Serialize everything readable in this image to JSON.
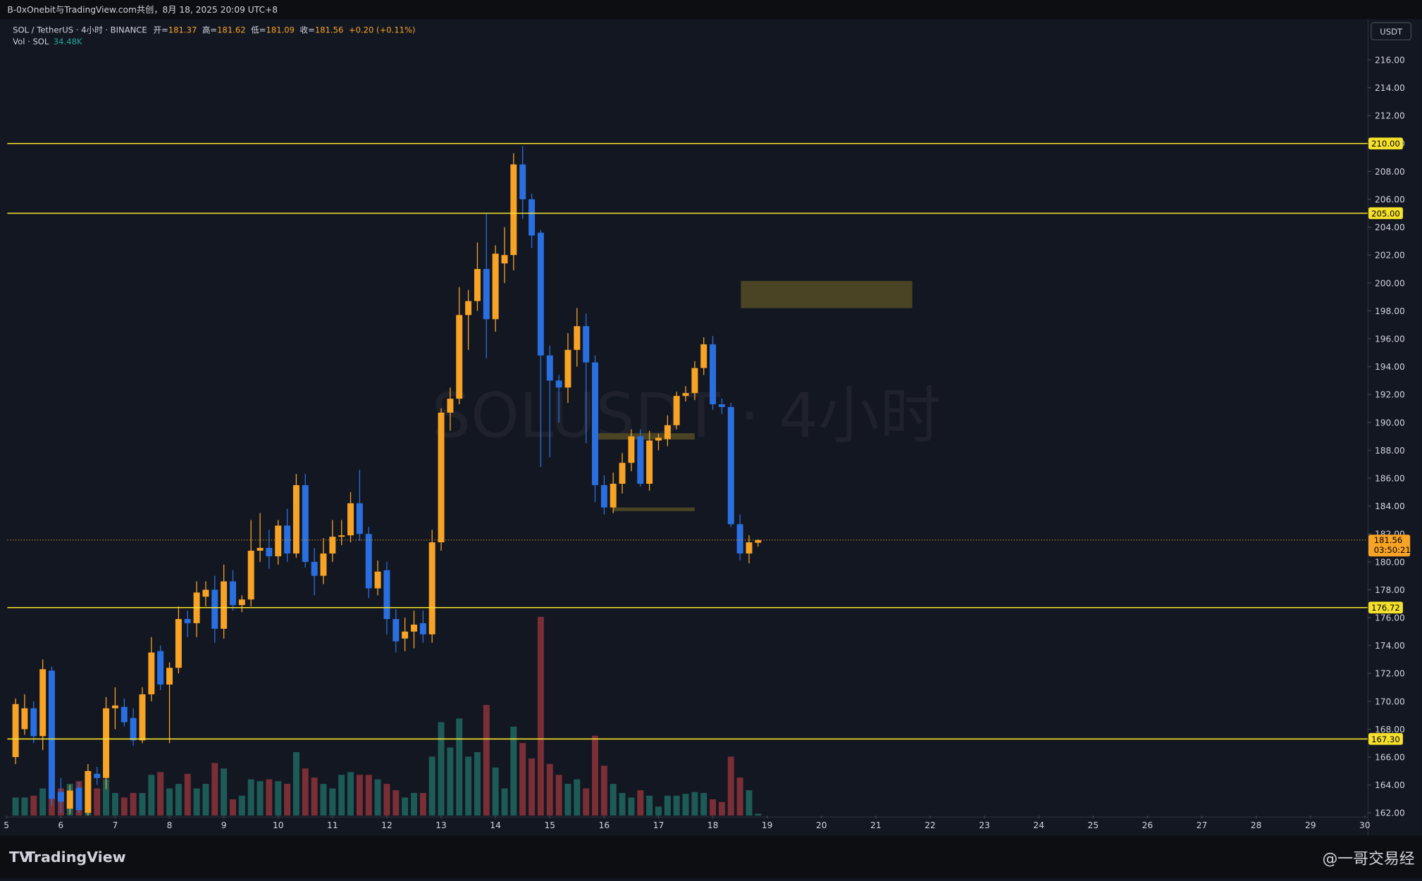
{
  "header": {
    "attribution": "B-0xOnebit与TradingView.com共创，8月 18, 2025 20:09 UTC+8",
    "symbol": "SOL / TetherUS · 4小时 · BINANCE",
    "open_key": "开=",
    "high_key": "高=",
    "low_key": "低=",
    "close_key": "收=",
    "change": "+0.20 (+0.11%)",
    "vol_key": "Vol · SOL",
    "currency": "USDT",
    "watermark": "SOLUSDT · 4小时",
    "brand": "TradingView",
    "author": "@一哥交易经"
  },
  "chart_data": {
    "type": "candlestick",
    "up_color": "#f7a325",
    "down_color": "#2a6fe0",
    "vol_up_color": "#1d5b57",
    "vol_down_color": "#7a2e36",
    "line_color": "#f5e12c",
    "x": [
      5.167,
      5.333,
      5.5,
      5.667,
      5.833,
      6,
      6.167,
      6.333,
      6.5,
      6.667,
      6.833,
      7,
      7.167,
      7.333,
      7.5,
      7.667,
      7.833,
      8,
      8.167,
      8.333,
      8.5,
      8.667,
      8.833,
      9,
      9.167,
      9.333,
      9.5,
      9.667,
      9.833,
      10,
      10.167,
      10.333,
      10.5,
      10.667,
      10.833,
      11,
      11.167,
      11.333,
      11.5,
      11.667,
      11.833,
      12,
      12.167,
      12.333,
      12.5,
      12.667,
      12.833,
      13,
      13.167,
      13.333,
      13.5,
      13.667,
      13.833,
      14,
      14.167,
      14.333,
      14.5,
      14.667,
      14.833,
      15,
      15.167,
      15.333,
      15.5,
      15.667,
      15.833,
      16,
      16.167,
      16.333,
      16.5,
      16.667,
      16.833,
      17,
      17.167,
      17.333,
      17.5,
      17.667,
      17.833,
      18,
      18.167,
      18.333,
      18.5,
      18.667,
      18.833
    ],
    "open": [
      166,
      168,
      169.5,
      167.5,
      172.2,
      163.5,
      162.3,
      163.8,
      162,
      164.8,
      164.5,
      169.5,
      169.6,
      168.8,
      167.2,
      170.5,
      173.6,
      171.2,
      172.4,
      175.9,
      175.6,
      177.5,
      178,
      175.2,
      178.6,
      176.9,
      177.3,
      180.8,
      181,
      180.4,
      182.6,
      180.6,
      185.5,
      180,
      179,
      180.6,
      181.8,
      181.9,
      184.2,
      182,
      178.1,
      179.4,
      175.9,
      174.5,
      175,
      175.6,
      174.8,
      181.4,
      190.7,
      191.7,
      197.7,
      198.7,
      201,
      197.4,
      201.4,
      202,
      208.5,
      206,
      203.6,
      194.8,
      193,
      192.5,
      195.2,
      196.9,
      194.3,
      185.5,
      183.9,
      185.6,
      187.1,
      189,
      185.6,
      188.7,
      188.8,
      189.8,
      191.9,
      192.1,
      193.9,
      195.6,
      191.3,
      191.1,
      182.7,
      180.6,
      181.37
    ],
    "high": [
      170.2,
      170.5,
      170,
      173,
      172.5,
      164.5,
      164,
      164.2,
      165.5,
      165.3,
      170.3,
      171,
      170.2,
      169.5,
      171,
      174.6,
      174,
      172.8,
      176.8,
      176.5,
      178.6,
      178.6,
      179,
      179.8,
      179.4,
      177.6,
      183,
      183.5,
      182.3,
      183,
      183.8,
      186.3,
      186.3,
      181,
      181.7,
      183,
      183,
      185,
      186.6,
      182.5,
      180.1,
      180,
      176.6,
      176,
      176.5,
      176.5,
      182.3,
      191,
      192.5,
      199.7,
      199.5,
      202.9,
      205,
      202.7,
      204,
      209.3,
      209.8,
      206.4,
      203.8,
      195.5,
      193.4,
      196.4,
      198.2,
      197.8,
      194.8,
      186.2,
      186.4,
      187.8,
      189.5,
      189.5,
      189.4,
      189.2,
      190.5,
      192.2,
      192.6,
      194.4,
      196.1,
      196.2,
      191.7,
      191.4,
      183.4,
      181.9,
      181.62
    ],
    "low": [
      165.5,
      167.6,
      167,
      166.5,
      162.5,
      162,
      161.9,
      162,
      161.8,
      164,
      163.7,
      168,
      168.2,
      166.8,
      167,
      170,
      170.8,
      167,
      172,
      174.6,
      174.6,
      176.8,
      174.2,
      174.5,
      176.5,
      176.4,
      176.8,
      180,
      179.5,
      179.8,
      180,
      180.3,
      179.6,
      177.6,
      178.4,
      180,
      181.2,
      181.4,
      181.5,
      177.4,
      177.6,
      174.8,
      173.5,
      173.6,
      173.8,
      174.2,
      174.2,
      180.8,
      189.4,
      191.3,
      195.2,
      198,
      194.6,
      196.5,
      200,
      200.9,
      204.6,
      202.5,
      186.8,
      187.5,
      190,
      191.4,
      194,
      188.5,
      184.3,
      183.4,
      183.5,
      184.9,
      186.5,
      185.4,
      185.1,
      188,
      188.3,
      189.5,
      191.5,
      191.6,
      193.4,
      190.9,
      190.6,
      182.5,
      180.1,
      179.9,
      181.09
    ],
    "close": [
      169.8,
      169.5,
      167.5,
      172.3,
      163,
      162.8,
      163.6,
      162.2,
      165,
      164.5,
      169.5,
      169.7,
      168.5,
      167.2,
      170.5,
      173.5,
      171.2,
      172.4,
      175.9,
      175.6,
      177.8,
      178,
      175.2,
      178.6,
      176.9,
      177.3,
      180.8,
      181,
      180.4,
      182.6,
      180.6,
      185.5,
      180,
      179,
      180.6,
      181.8,
      181.9,
      184.2,
      182,
      178.1,
      179.3,
      175.9,
      174.3,
      175,
      175.5,
      174.8,
      181.4,
      190.7,
      191.7,
      197.7,
      198.7,
      201,
      197.4,
      202.1,
      202,
      208.5,
      206,
      203.4,
      194.8,
      193,
      192.5,
      195.2,
      196.9,
      194.3,
      185.5,
      183.9,
      185.6,
      187.1,
      189,
      185.6,
      188.7,
      188.9,
      189.8,
      191.9,
      192.1,
      193.9,
      195.6,
      191.3,
      191.1,
      182.7,
      180.6,
      181.4,
      181.56
    ],
    "volume": [
      330000,
      330000,
      363000,
      495000,
      907500,
      495000,
      577500,
      627000,
      742500,
      495000,
      660000,
      412500,
      330000,
      412500,
      412500,
      742500,
      792000,
      495000,
      577500,
      759000,
      495000,
      577500,
      957000,
      858000,
      297000,
      363000,
      660000,
      627000,
      660000,
      627000,
      577500,
      1155000,
      858000,
      693000,
      577500,
      495000,
      742500,
      792000,
      742500,
      742500,
      660000,
      577500,
      462000,
      330000,
      412500,
      412500,
      1072500,
      1699500,
      1237500,
      1765500,
      1072500,
      1155000,
      2013000,
      874500,
      495000,
      1617000,
      1320000,
      1039500,
      3613500,
      940500,
      742500,
      577500,
      660000,
      495000,
      1452000,
      907500,
      577500,
      412500,
      330000,
      462000,
      363000,
      165000,
      363000,
      363000,
      396000,
      429000,
      412500,
      297000,
      247500,
      1072500,
      693000,
      462000,
      34480
    ],
    "volume_last_label": "34.48K",
    "vol_lim": [
      0,
      4200000
    ],
    "xlim": [
      5.015,
      30.05
    ],
    "xticks": [
      5,
      6,
      7,
      8,
      9,
      10,
      11,
      12,
      13,
      14,
      15,
      16,
      17,
      18,
      19,
      20,
      21,
      22,
      23,
      24,
      25,
      26,
      27,
      28,
      29,
      30
    ],
    "ylim": [
      161.8,
      218.86
    ],
    "yticks": [
      {
        "value": 162,
        "label": "162.00"
      },
      {
        "value": 164,
        "label": "164.00"
      },
      {
        "value": 166,
        "label": "166.00"
      },
      {
        "value": 168,
        "label": "168.00"
      },
      {
        "value": 170,
        "label": "170.00"
      },
      {
        "value": 172,
        "label": "172.00"
      },
      {
        "value": 174,
        "label": "174.00"
      },
      {
        "value": 176,
        "label": "176.00"
      },
      {
        "value": 178,
        "label": "178.00"
      },
      {
        "value": 180,
        "label": "180.00"
      },
      {
        "value": 182,
        "label": "182.00"
      },
      {
        "value": 184,
        "label": "184.00"
      },
      {
        "value": 186,
        "label": "186.00"
      },
      {
        "value": 188,
        "label": "188.00"
      },
      {
        "value": 190,
        "label": "190.00"
      },
      {
        "value": 192,
        "label": "192.00"
      },
      {
        "value": 194,
        "label": "194.00"
      },
      {
        "value": 196,
        "label": "196.00"
      },
      {
        "value": 198,
        "label": "198.00"
      },
      {
        "value": 200,
        "label": "200.00"
      },
      {
        "value": 202,
        "label": "202.00"
      },
      {
        "value": 204,
        "label": "204.00"
      },
      {
        "value": 206,
        "label": "206.00"
      },
      {
        "value": 208,
        "label": "208.00"
      },
      {
        "value": 210,
        "label": "210.00"
      },
      {
        "value": 212,
        "label": "212.00"
      },
      {
        "value": 214,
        "label": "214.00"
      },
      {
        "value": 216,
        "label": "216.00"
      }
    ],
    "hlines": [
      {
        "value": 210,
        "label": "210.00"
      },
      {
        "value": 205,
        "label": "205.00"
      },
      {
        "value": 176.72,
        "label": "176.72"
      },
      {
        "value": 167.3,
        "label": "167.30"
      }
    ],
    "countdown": "03:50:21"
  }
}
